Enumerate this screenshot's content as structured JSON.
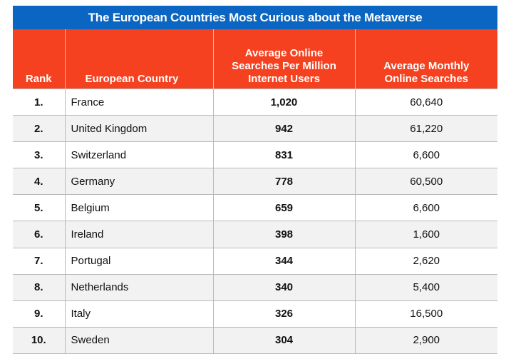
{
  "title": "The European Countries Most Curious about the Metaverse",
  "colors": {
    "title_bg": "#0a66c2",
    "header_bg": "#f5411f",
    "row_bg_alt": "#f2f2f2",
    "row_bg": "#ffffff"
  },
  "headers": {
    "rank": "Rank",
    "country": "European Country",
    "per_million_1": "Average Online",
    "per_million_2": "Searches Per Million",
    "per_million_3": "Internet Users",
    "monthly_1": "Average Monthly",
    "monthly_2": "Online Searches"
  },
  "rows": [
    {
      "rank": "1.",
      "country": "France",
      "per_million": "1,020",
      "monthly": "60,640"
    },
    {
      "rank": "2.",
      "country": "United Kingdom",
      "per_million": "942",
      "monthly": "61,220"
    },
    {
      "rank": "3.",
      "country": "Switzerland",
      "per_million": "831",
      "monthly": "6,600"
    },
    {
      "rank": "4.",
      "country": "Germany",
      "per_million": "778",
      "monthly": "60,500"
    },
    {
      "rank": "5.",
      "country": "Belgium",
      "per_million": "659",
      "monthly": "6,600"
    },
    {
      "rank": "6.",
      "country": "Ireland",
      "per_million": "398",
      "monthly": "1,600"
    },
    {
      "rank": "7.",
      "country": "Portugal",
      "per_million": "344",
      "monthly": "2,620"
    },
    {
      "rank": "8.",
      "country": "Netherlands",
      "per_million": "340",
      "monthly": "5,400"
    },
    {
      "rank": "9.",
      "country": "Italy",
      "per_million": "326",
      "monthly": "16,500"
    },
    {
      "rank": "10.",
      "country": "Sweden",
      "per_million": "304",
      "monthly": "2,900"
    }
  ]
}
